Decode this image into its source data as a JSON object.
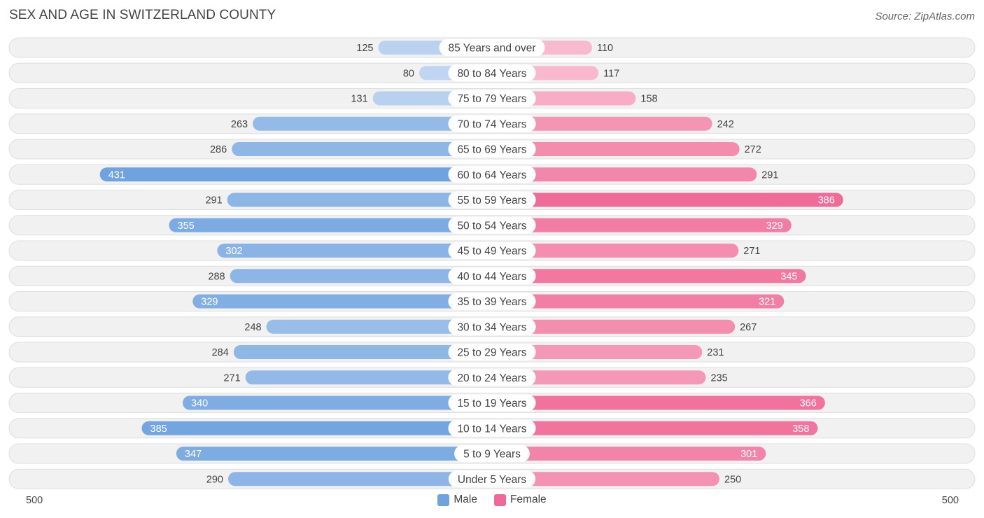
{
  "chart_data": {
    "type": "bar",
    "orientation": "horizontal-diverging",
    "title": "SEX AND AGE IN SWITZERLAND COUNTY",
    "source": "Source: ZipAtlas.com",
    "categories": [
      "85 Years and over",
      "80 to 84 Years",
      "75 to 79 Years",
      "70 to 74 Years",
      "65 to 69 Years",
      "60 to 64 Years",
      "55 to 59 Years",
      "50 to 54 Years",
      "45 to 49 Years",
      "40 to 44 Years",
      "35 to 39 Years",
      "30 to 34 Years",
      "25 to 29 Years",
      "20 to 24 Years",
      "15 to 19 Years",
      "10 to 14 Years",
      "5 to 9 Years",
      "Under 5 Years"
    ],
    "series": [
      {
        "name": "Male",
        "color": "#6fa3df",
        "values": [
          125,
          80,
          131,
          263,
          286,
          431,
          291,
          355,
          302,
          288,
          329,
          248,
          284,
          271,
          340,
          385,
          347,
          290
        ]
      },
      {
        "name": "Female",
        "color": "#f06895",
        "values": [
          110,
          117,
          158,
          242,
          272,
          291,
          386,
          329,
          271,
          345,
          321,
          267,
          231,
          235,
          366,
          358,
          301,
          250
        ]
      }
    ],
    "axis": {
      "left_label": "500",
      "right_label": "500",
      "max": 500
    },
    "legend": [
      {
        "name": "Male",
        "color": "#6fa3df"
      },
      {
        "name": "Female",
        "color": "#f06895"
      }
    ]
  }
}
